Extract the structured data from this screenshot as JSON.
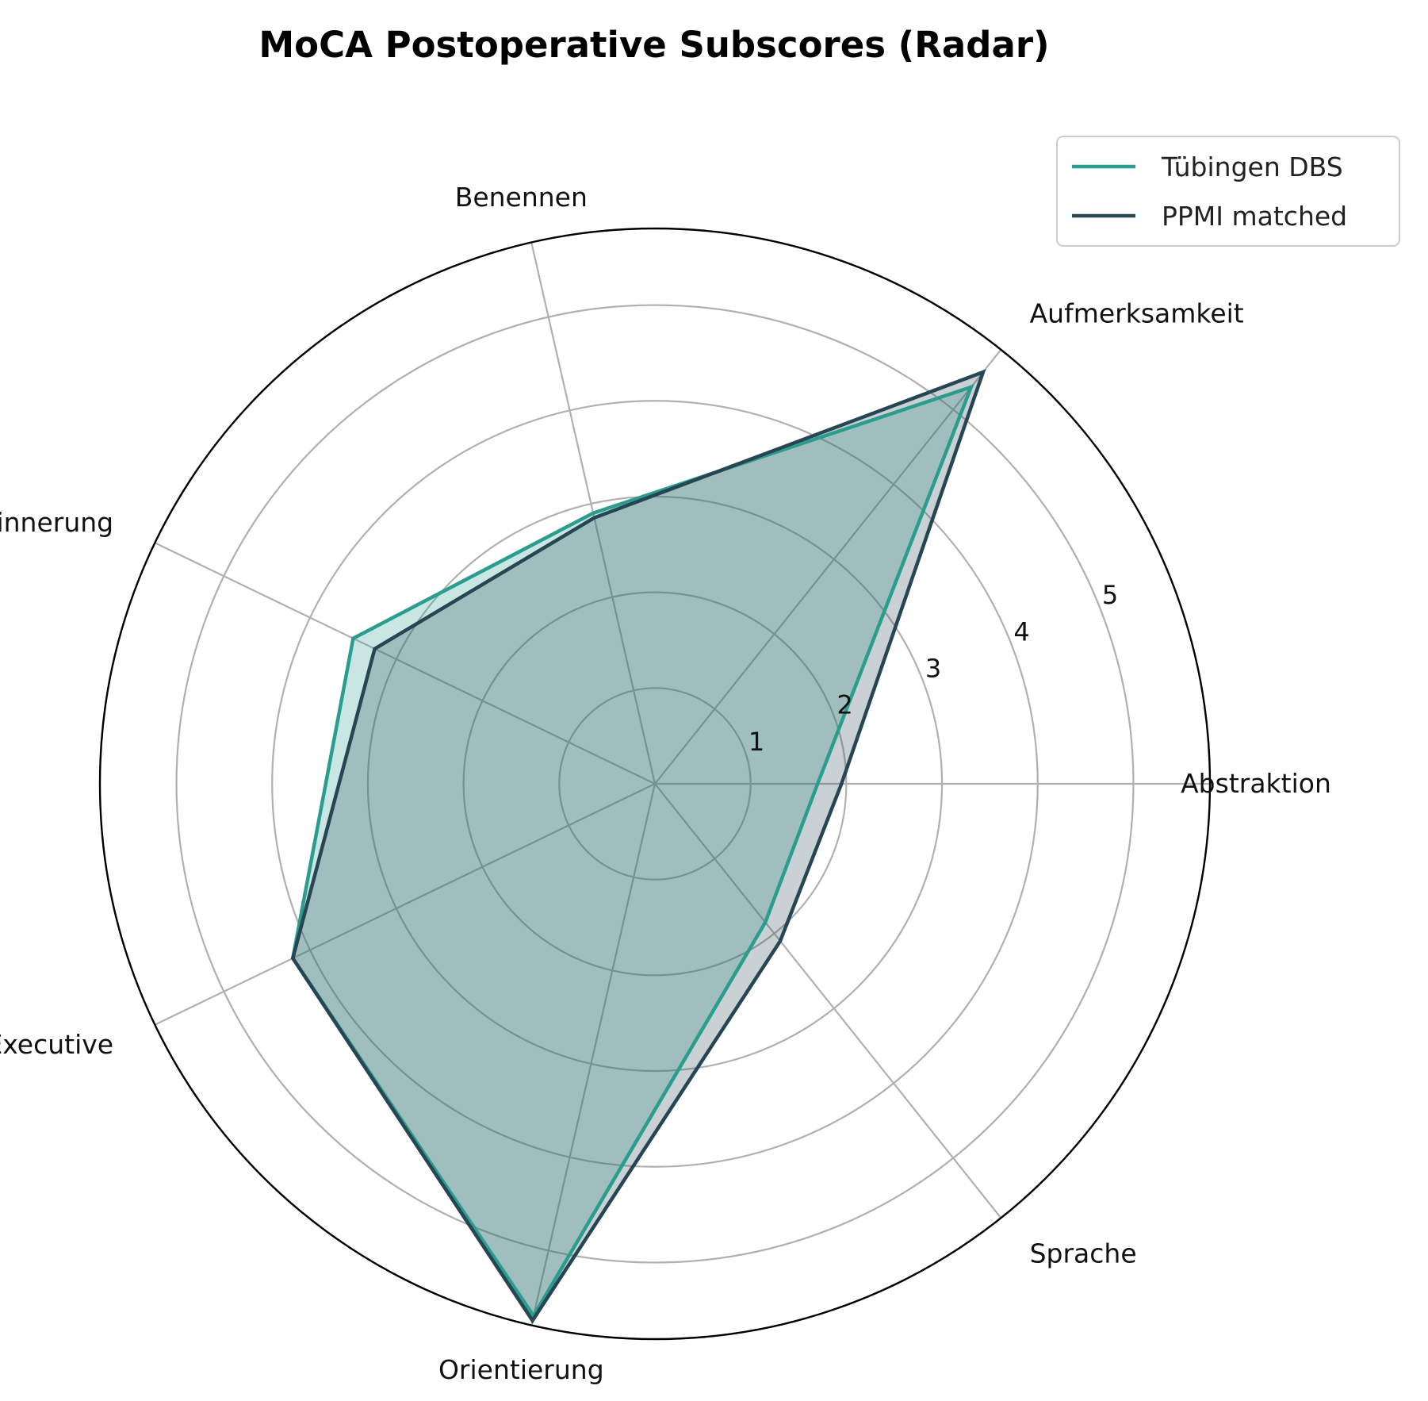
{
  "chart_data": {
    "type": "radar",
    "title": "MoCA Postoperative Subscores (Radar)",
    "categories": [
      "Abstraktion",
      "Aufmerksamkeit",
      "Benennen",
      "Erinnerung",
      "Executive",
      "Orientierung",
      "Sprache"
    ],
    "radial_ticks": [
      "1",
      "2",
      "3",
      "4",
      "5"
    ],
    "rmax": 5.8,
    "series": [
      {
        "name": "Tübingen DBS",
        "color": "#2a9d8f",
        "values": [
          1.7,
          5.3,
          2.9,
          3.5,
          4.2,
          5.7,
          1.85
        ]
      },
      {
        "name": "PPMI matched",
        "color": "#264653",
        "values": [
          1.95,
          5.5,
          2.85,
          3.25,
          4.2,
          5.75,
          2.1
        ]
      }
    ],
    "legend_position": "top-right",
    "grid": true
  }
}
